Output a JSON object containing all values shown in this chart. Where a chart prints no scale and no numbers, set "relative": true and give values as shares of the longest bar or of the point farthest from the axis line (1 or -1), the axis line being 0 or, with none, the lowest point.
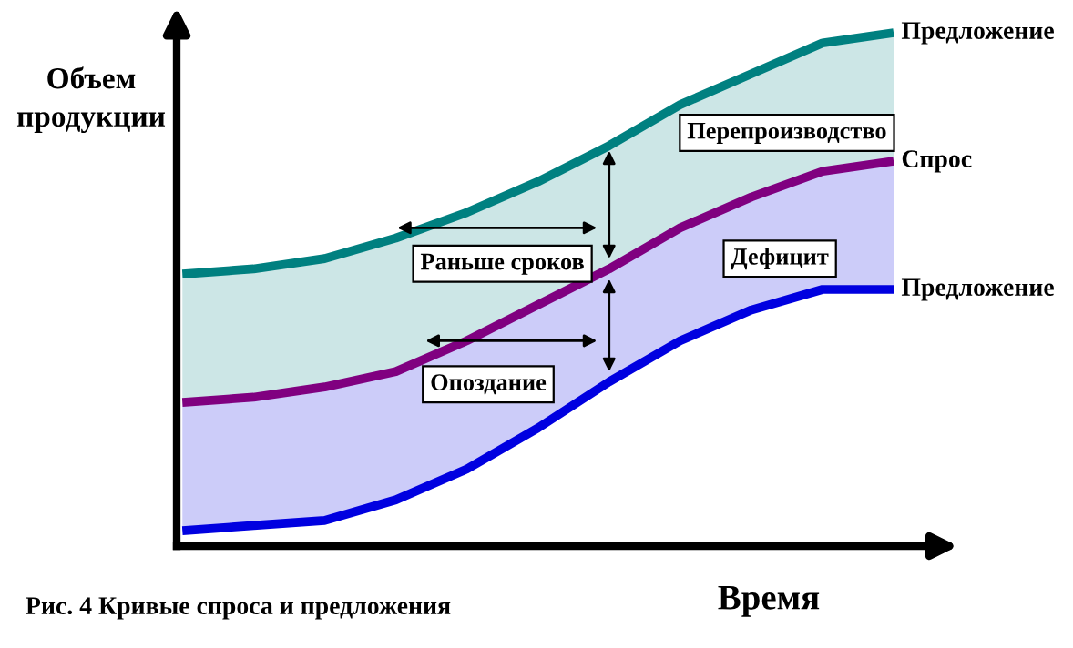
{
  "chart_data": {
    "type": "line",
    "relative": true,
    "xlabel": "Время",
    "ylabel": "Объем продукции",
    "legend": false,
    "grid": false,
    "categories": [
      null,
      null,
      null,
      null,
      null,
      null,
      null,
      null,
      null,
      null,
      null
    ],
    "series": [
      {
        "name": "Предложение",
        "color": "#008080",
        "values": [
          0.53,
          0.54,
          0.56,
          0.6,
          0.65,
          0.71,
          0.78,
          0.86,
          0.92,
          0.98,
          1.0
        ],
        "lower": [
          0.28,
          0.29,
          0.31,
          0.34,
          0.4,
          0.47,
          0.54,
          0.62,
          0.68,
          0.73,
          0.75
        ],
        "upper": [
          0.53,
          0.54,
          0.56,
          0.6,
          0.65,
          0.71,
          0.78,
          0.86,
          0.92,
          0.98,
          1.0
        ]
      },
      {
        "name": "Спрос",
        "color": "#800080",
        "values": [
          0.28,
          0.29,
          0.31,
          0.34,
          0.4,
          0.47,
          0.54,
          0.62,
          0.68,
          0.73,
          0.75
        ]
      },
      {
        "name": "Предложение",
        "color": "#0000e0",
        "values": [
          0.03,
          0.04,
          0.05,
          0.09,
          0.15,
          0.23,
          0.32,
          0.4,
          0.46,
          0.5,
          0.5
        ],
        "lower": [
          0.03,
          0.04,
          0.05,
          0.09,
          0.15,
          0.23,
          0.32,
          0.4,
          0.46,
          0.5,
          0.5
        ],
        "upper": [
          0.28,
          0.29,
          0.31,
          0.34,
          0.4,
          0.47,
          0.54,
          0.62,
          0.68,
          0.73,
          0.75
        ]
      }
    ],
    "annotations": [
      "Перепроизводство",
      "Раньше сроков",
      "Дефицит",
      "Опоздание",
      "Рис. 4 Кривые спроса и предложения"
    ]
  }
}
